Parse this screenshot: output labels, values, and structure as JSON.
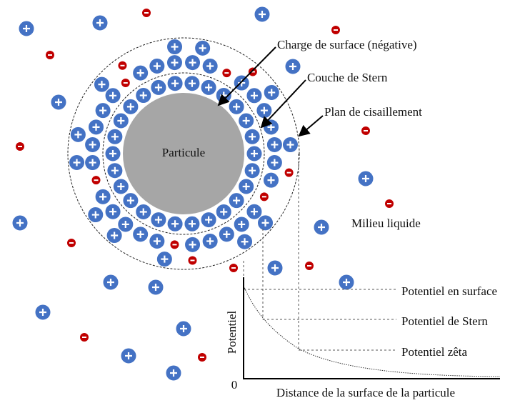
{
  "labels": {
    "surface_charge": "Charge de surface (négative)",
    "stern_layer": "Couche de Stern",
    "shear_plane": "Plan de cisaillement",
    "particle": "Particule",
    "medium": "Milieu liquide"
  },
  "graph": {
    "y_label": "Potentiel",
    "x_label": "Distance de la surface de la particule",
    "origin": "0",
    "levels": [
      "Potentiel en surface",
      "Potentiel de Stern",
      "Potentiel zêta"
    ]
  }
}
